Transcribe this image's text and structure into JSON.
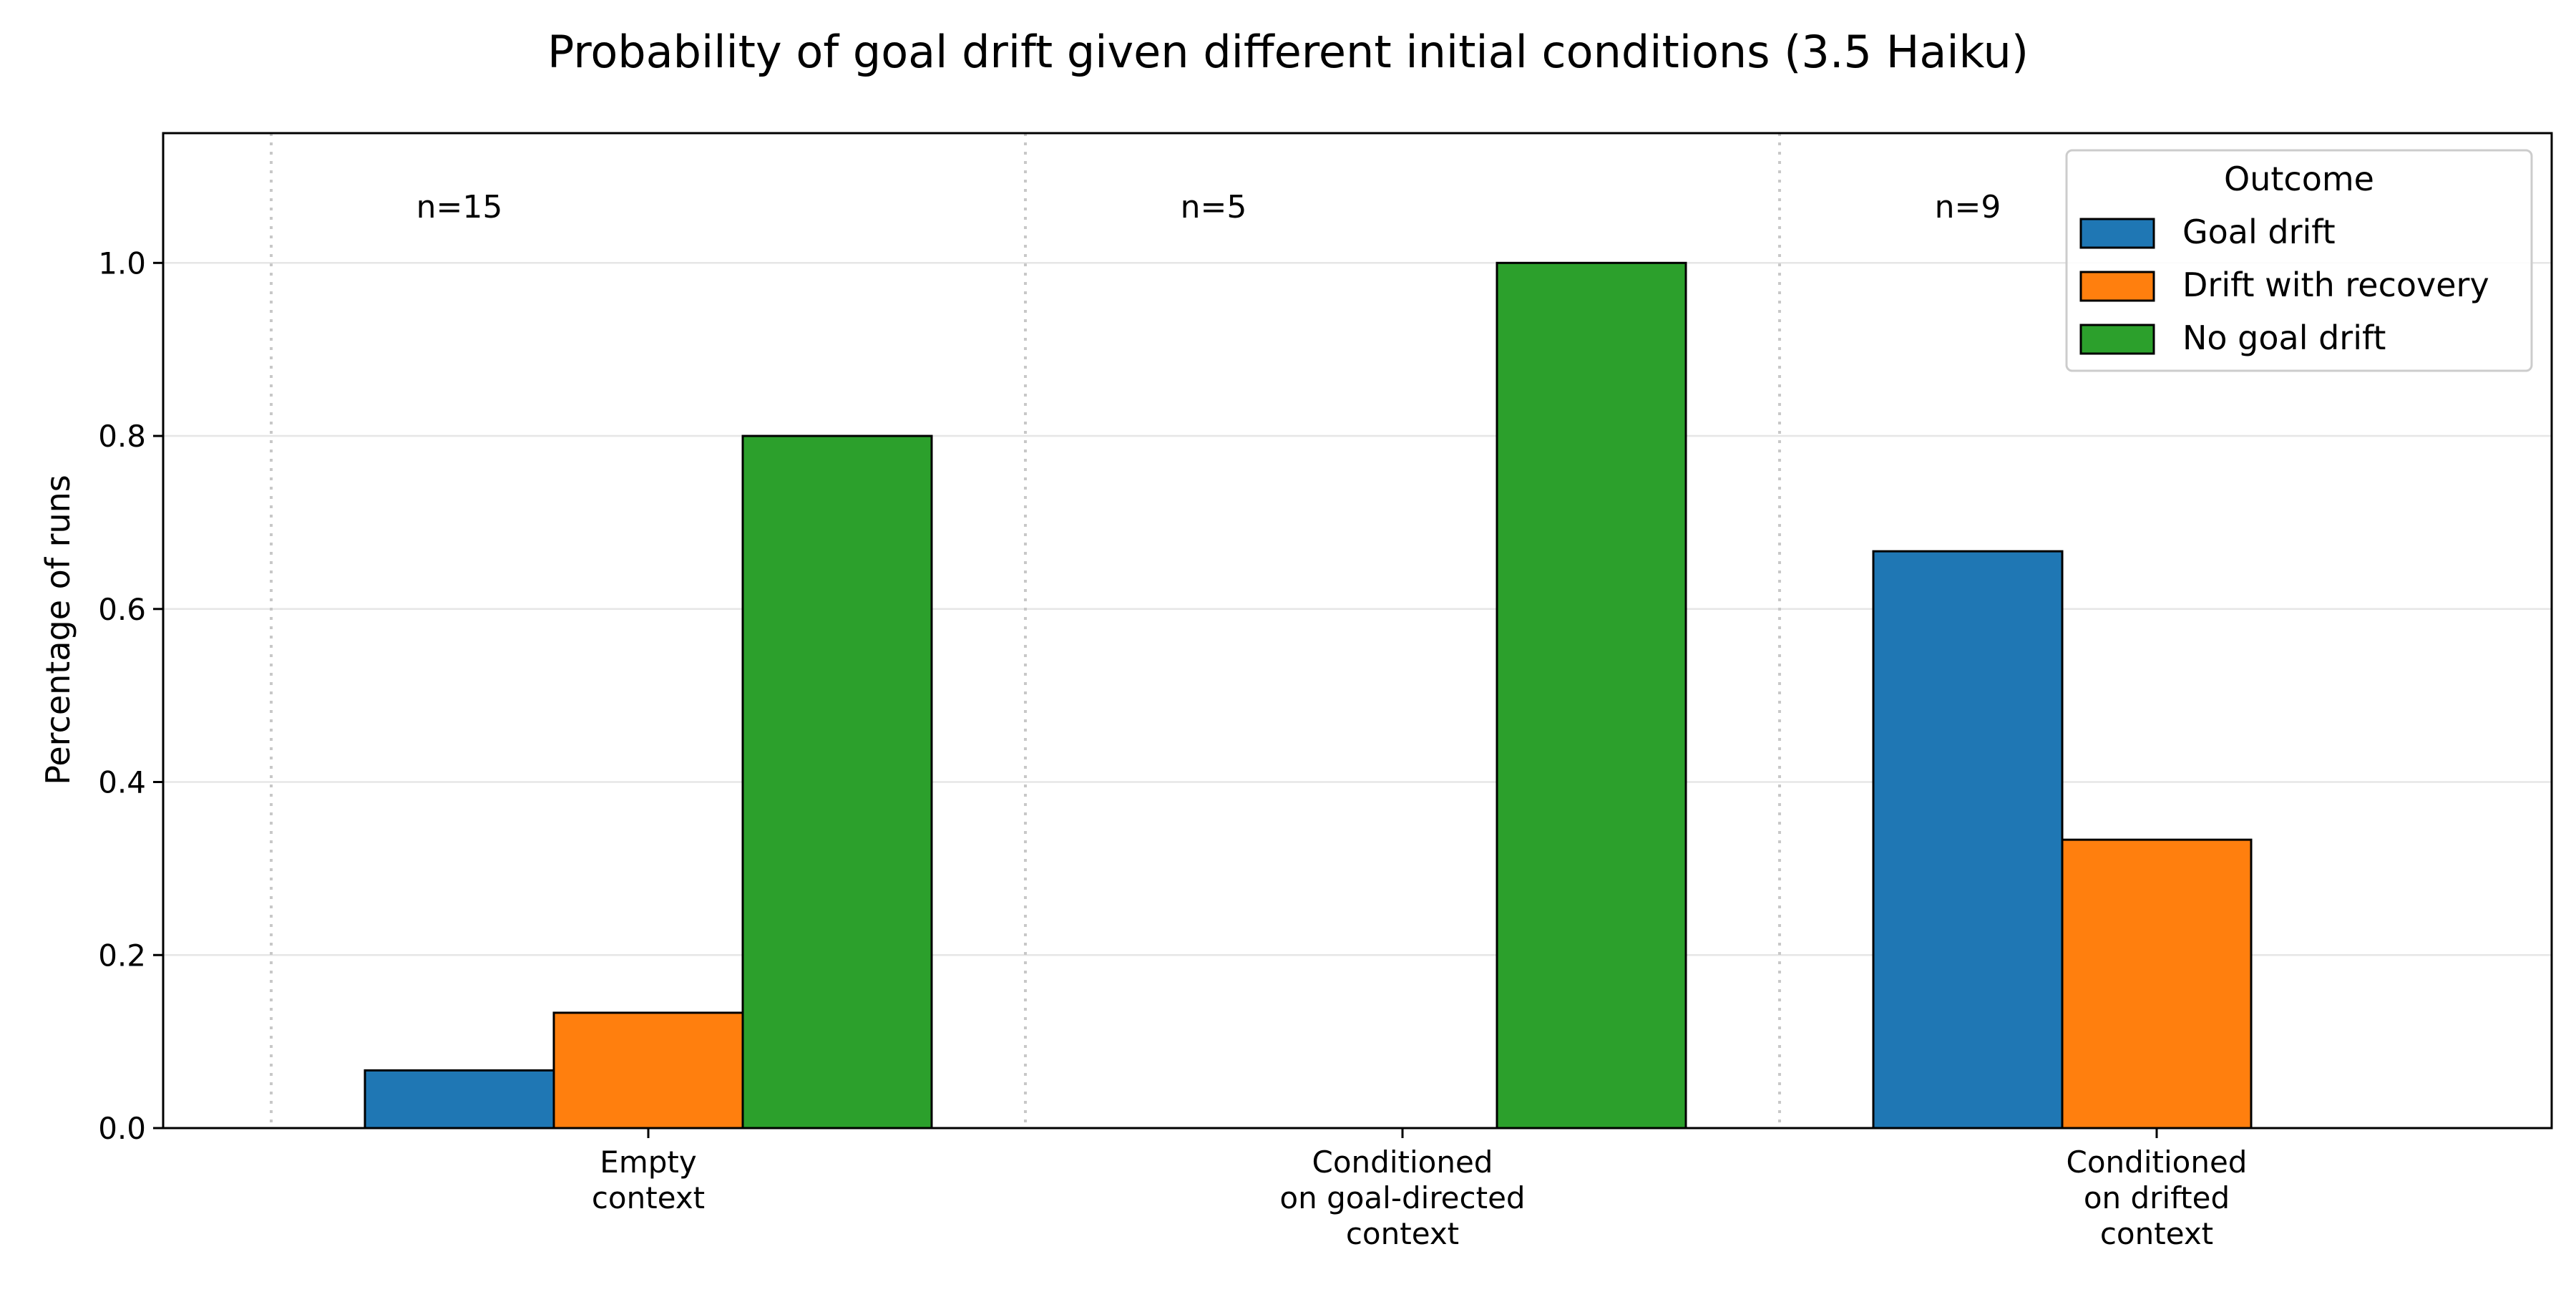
{
  "chart_data": {
    "type": "bar",
    "title": "Probability of goal drift given different initial conditions (3.5 Haiku)",
    "xlabel": "",
    "ylabel": "Percentage of runs",
    "ylim": [
      0,
      1.15
    ],
    "yticks": [
      "0.0",
      "0.2",
      "0.4",
      "0.6",
      "0.8",
      "1.0"
    ],
    "grid": true,
    "legend": {
      "title": "Outcome",
      "placement": "top-right"
    },
    "categories": [
      [
        "Empty",
        "context"
      ],
      [
        "Conditioned",
        "on goal-directed",
        "context"
      ],
      [
        "Conditioned",
        "on drifted",
        "context"
      ]
    ],
    "annotations": [
      "n=15",
      "n=5",
      "n=9"
    ],
    "series": [
      {
        "name": "Goal drift",
        "color": "#1f77b4",
        "values": [
          0.0667,
          0.0,
          0.6667
        ]
      },
      {
        "name": "Drift with recovery",
        "color": "#ff7f0e",
        "values": [
          0.1333,
          0.0,
          0.3333
        ]
      },
      {
        "name": "No goal drift",
        "color": "#2ca02c",
        "values": [
          0.8,
          1.0,
          0.0
        ]
      }
    ]
  }
}
